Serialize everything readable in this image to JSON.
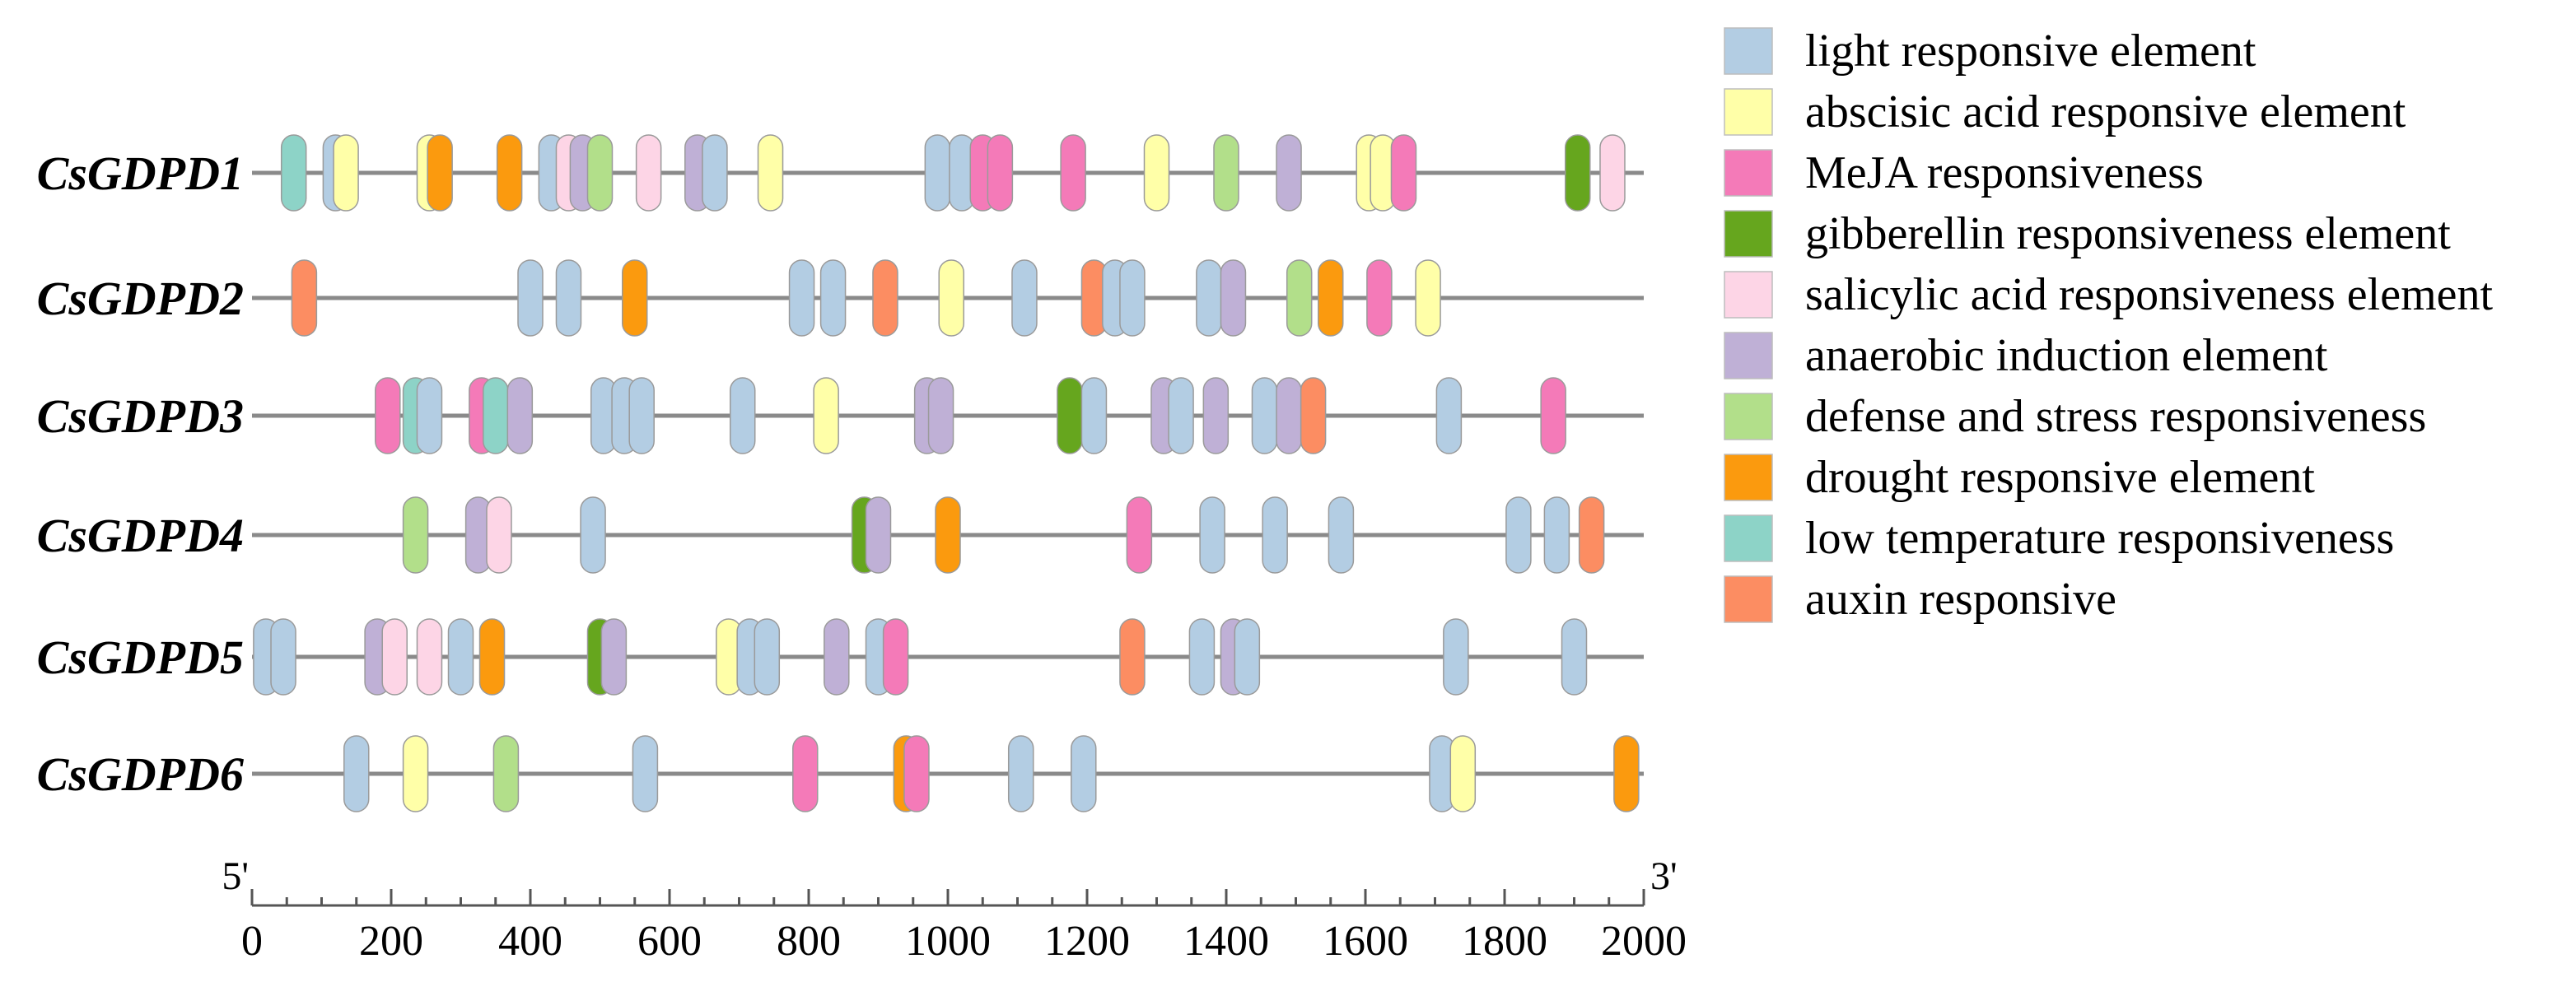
{
  "chart_data": {
    "type": "promoter_cis_element_map",
    "axis": {
      "min": 0,
      "max": 2000,
      "ticks": [
        0,
        200,
        400,
        600,
        800,
        1000,
        1200,
        1400,
        1600,
        1800,
        2000
      ],
      "start_label": "5'",
      "end_label": "3'"
    },
    "categories": [
      {
        "id": "light",
        "label": "light responsive element",
        "color": "#b3cde3"
      },
      {
        "id": "aba",
        "label": "abscisic acid responsive element",
        "color": "#ffffa8"
      },
      {
        "id": "meja",
        "label": "MeJA responsiveness",
        "color": "#f47ab8"
      },
      {
        "id": "ga",
        "label": "gibberellin responsiveness element",
        "color": "#66a61e"
      },
      {
        "id": "sa",
        "label": "salicylic acid responsiveness element",
        "color": "#fdd5e6"
      },
      {
        "id": "anaerobic",
        "label": "anaerobic induction element",
        "color": "#bfb0d6"
      },
      {
        "id": "defense",
        "label": "defense and stress responsiveness",
        "color": "#b2df8a"
      },
      {
        "id": "drought",
        "label": "drought responsive element",
        "color": "#fb9a0e"
      },
      {
        "id": "lowtemp",
        "label": "low temperature responsiveness",
        "color": "#8dd3c7"
      },
      {
        "id": "auxin",
        "label": "auxin responsive",
        "color": "#fc8d62"
      }
    ],
    "genes": [
      {
        "name": "CsGDPD1",
        "elements": [
          {
            "pos": 60,
            "type": "lowtemp"
          },
          {
            "pos": 120,
            "type": "light"
          },
          {
            "pos": 135,
            "type": "aba"
          },
          {
            "pos": 255,
            "type": "aba"
          },
          {
            "pos": 270,
            "type": "drought"
          },
          {
            "pos": 370,
            "type": "drought"
          },
          {
            "pos": 430,
            "type": "light"
          },
          {
            "pos": 455,
            "type": "sa"
          },
          {
            "pos": 475,
            "type": "anaerobic"
          },
          {
            "pos": 500,
            "type": "defense"
          },
          {
            "pos": 570,
            "type": "sa"
          },
          {
            "pos": 640,
            "type": "anaerobic"
          },
          {
            "pos": 665,
            "type": "light"
          },
          {
            "pos": 745,
            "type": "aba"
          },
          {
            "pos": 985,
            "type": "light"
          },
          {
            "pos": 1020,
            "type": "light"
          },
          {
            "pos": 1050,
            "type": "meja"
          },
          {
            "pos": 1075,
            "type": "meja"
          },
          {
            "pos": 1180,
            "type": "meja"
          },
          {
            "pos": 1300,
            "type": "aba"
          },
          {
            "pos": 1400,
            "type": "defense"
          },
          {
            "pos": 1490,
            "type": "anaerobic"
          },
          {
            "pos": 1605,
            "type": "aba"
          },
          {
            "pos": 1625,
            "type": "aba"
          },
          {
            "pos": 1655,
            "type": "meja"
          },
          {
            "pos": 1905,
            "type": "ga"
          },
          {
            "pos": 1955,
            "type": "sa"
          }
        ]
      },
      {
        "name": "CsGDPD2",
        "elements": [
          {
            "pos": 75,
            "type": "auxin"
          },
          {
            "pos": 400,
            "type": "light"
          },
          {
            "pos": 455,
            "type": "light"
          },
          {
            "pos": 550,
            "type": "drought"
          },
          {
            "pos": 790,
            "type": "light"
          },
          {
            "pos": 835,
            "type": "light"
          },
          {
            "pos": 910,
            "type": "auxin"
          },
          {
            "pos": 1005,
            "type": "aba"
          },
          {
            "pos": 1110,
            "type": "light"
          },
          {
            "pos": 1210,
            "type": "auxin"
          },
          {
            "pos": 1240,
            "type": "light"
          },
          {
            "pos": 1265,
            "type": "light"
          },
          {
            "pos": 1375,
            "type": "light"
          },
          {
            "pos": 1410,
            "type": "anaerobic"
          },
          {
            "pos": 1505,
            "type": "defense"
          },
          {
            "pos": 1550,
            "type": "drought"
          },
          {
            "pos": 1620,
            "type": "meja"
          },
          {
            "pos": 1690,
            "type": "aba"
          }
        ]
      },
      {
        "name": "CsGDPD3",
        "elements": [
          {
            "pos": 195,
            "type": "meja"
          },
          {
            "pos": 235,
            "type": "lowtemp"
          },
          {
            "pos": 255,
            "type": "light"
          },
          {
            "pos": 330,
            "type": "meja"
          },
          {
            "pos": 350,
            "type": "lowtemp"
          },
          {
            "pos": 385,
            "type": "anaerobic"
          },
          {
            "pos": 505,
            "type": "light"
          },
          {
            "pos": 535,
            "type": "light"
          },
          {
            "pos": 560,
            "type": "light"
          },
          {
            "pos": 705,
            "type": "light"
          },
          {
            "pos": 825,
            "type": "aba"
          },
          {
            "pos": 970,
            "type": "anaerobic"
          },
          {
            "pos": 990,
            "type": "anaerobic"
          },
          {
            "pos": 1175,
            "type": "ga"
          },
          {
            "pos": 1210,
            "type": "light"
          },
          {
            "pos": 1310,
            "type": "anaerobic"
          },
          {
            "pos": 1335,
            "type": "light"
          },
          {
            "pos": 1385,
            "type": "anaerobic"
          },
          {
            "pos": 1455,
            "type": "light"
          },
          {
            "pos": 1490,
            "type": "anaerobic"
          },
          {
            "pos": 1525,
            "type": "auxin"
          },
          {
            "pos": 1720,
            "type": "light"
          },
          {
            "pos": 1870,
            "type": "meja"
          }
        ]
      },
      {
        "name": "CsGDPD4",
        "elements": [
          {
            "pos": 235,
            "type": "defense"
          },
          {
            "pos": 325,
            "type": "anaerobic"
          },
          {
            "pos": 355,
            "type": "sa"
          },
          {
            "pos": 490,
            "type": "light"
          },
          {
            "pos": 880,
            "type": "ga"
          },
          {
            "pos": 900,
            "type": "anaerobic"
          },
          {
            "pos": 1000,
            "type": "drought"
          },
          {
            "pos": 1275,
            "type": "meja"
          },
          {
            "pos": 1380,
            "type": "light"
          },
          {
            "pos": 1470,
            "type": "light"
          },
          {
            "pos": 1565,
            "type": "light"
          },
          {
            "pos": 1820,
            "type": "light"
          },
          {
            "pos": 1875,
            "type": "light"
          },
          {
            "pos": 1925,
            "type": "auxin"
          }
        ]
      },
      {
        "name": "CsGDPD5",
        "elements": [
          {
            "pos": 20,
            "type": "light"
          },
          {
            "pos": 45,
            "type": "light"
          },
          {
            "pos": 180,
            "type": "anaerobic"
          },
          {
            "pos": 205,
            "type": "sa"
          },
          {
            "pos": 255,
            "type": "sa"
          },
          {
            "pos": 300,
            "type": "light"
          },
          {
            "pos": 345,
            "type": "drought"
          },
          {
            "pos": 500,
            "type": "ga"
          },
          {
            "pos": 520,
            "type": "anaerobic"
          },
          {
            "pos": 685,
            "type": "aba"
          },
          {
            "pos": 715,
            "type": "light"
          },
          {
            "pos": 740,
            "type": "light"
          },
          {
            "pos": 840,
            "type": "anaerobic"
          },
          {
            "pos": 900,
            "type": "light"
          },
          {
            "pos": 925,
            "type": "meja"
          },
          {
            "pos": 1265,
            "type": "auxin"
          },
          {
            "pos": 1365,
            "type": "light"
          },
          {
            "pos": 1410,
            "type": "anaerobic"
          },
          {
            "pos": 1430,
            "type": "light"
          },
          {
            "pos": 1730,
            "type": "light"
          },
          {
            "pos": 1900,
            "type": "light"
          }
        ]
      },
      {
        "name": "CsGDPD6",
        "elements": [
          {
            "pos": 150,
            "type": "light"
          },
          {
            "pos": 235,
            "type": "aba"
          },
          {
            "pos": 365,
            "type": "defense"
          },
          {
            "pos": 565,
            "type": "light"
          },
          {
            "pos": 795,
            "type": "meja"
          },
          {
            "pos": 940,
            "type": "drought"
          },
          {
            "pos": 955,
            "type": "meja"
          },
          {
            "pos": 1105,
            "type": "light"
          },
          {
            "pos": 1195,
            "type": "light"
          },
          {
            "pos": 1710,
            "type": "light"
          },
          {
            "pos": 1740,
            "type": "aba"
          },
          {
            "pos": 1975,
            "type": "drought"
          }
        ]
      }
    ]
  }
}
